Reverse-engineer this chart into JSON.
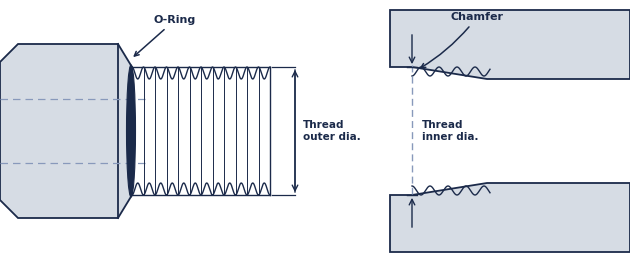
{
  "bg_color": "#ffffff",
  "body_color": "#d6dce4",
  "body_edge_color": "#1b2a4a",
  "thread_color": "#1b2a4a",
  "oring_color": "#1b2a4a",
  "dim_line_color": "#1b2a4a",
  "dashed_color": "#8899bb",
  "text_color": "#1b2a4a",
  "label_oring": "O-Ring",
  "label_chamfer": "Chamfer",
  "label_outer": "Thread\nouter dia.",
  "label_inner": "Thread\ninner dia.",
  "fig_width": 6.3,
  "fig_height": 2.62,
  "dpi": 100
}
